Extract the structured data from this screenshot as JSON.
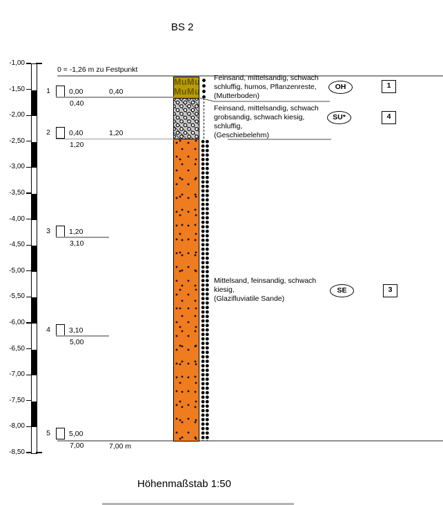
{
  "title": "BS 2",
  "datum_note": "0 = -1,26 m zu Festpunkt",
  "depth_axis": {
    "labels": [
      "-1,00",
      "-1,50",
      "-2,00",
      "-2,50",
      "-3,00",
      "-3,50",
      "-4,00",
      "-4,50",
      "-5,00",
      "-5,50",
      "-6,00",
      "-6,50",
      "-7,00",
      "-7,50",
      "-8,00",
      "-8,50"
    ]
  },
  "samples": [
    {
      "no": "1",
      "top": "0,00",
      "right": "0,40",
      "bottom": "0,40"
    },
    {
      "no": "2",
      "top": "0,40",
      "right": "1,20",
      "bottom": "1,20"
    },
    {
      "no": "3",
      "top": "1,20",
      "bottom": "3,10"
    },
    {
      "no": "4",
      "top": "3,10",
      "bottom": "5,00"
    },
    {
      "no": "5",
      "top": "5,00",
      "bottom": "7,00"
    }
  ],
  "layers": [
    {
      "code": "OH",
      "box_number": "1",
      "desc_lines": [
        "Feinsand, mittelsandig, schwach",
        "schluffig, humos, Pflanzenreste,",
        "(Mutterboden)"
      ]
    },
    {
      "code": "SU*",
      "box_number": "4",
      "desc_lines": [
        "Feinsand, mittelsandig, schwach",
        "grobsandig, schwach kiesig,",
        "schluffig,",
        "(Geschiebelehm)"
      ]
    },
    {
      "code": "SE",
      "box_number": "3",
      "desc_lines": [
        "Mittelsand, feinsandig, schwach",
        "kiesig,",
        "(Glazifluviatile Sande)"
      ]
    }
  ],
  "column": {
    "pattern_label": "MuMu"
  },
  "total_depth_label": "7,00 m",
  "footer": {
    "scale_label": "Höhenmaßstab 1:50"
  },
  "colors": {
    "topsoil": "#b79b05",
    "topsoil_text": "#6a5900",
    "till": "#c9c9c9",
    "sand": "#f07c20"
  }
}
